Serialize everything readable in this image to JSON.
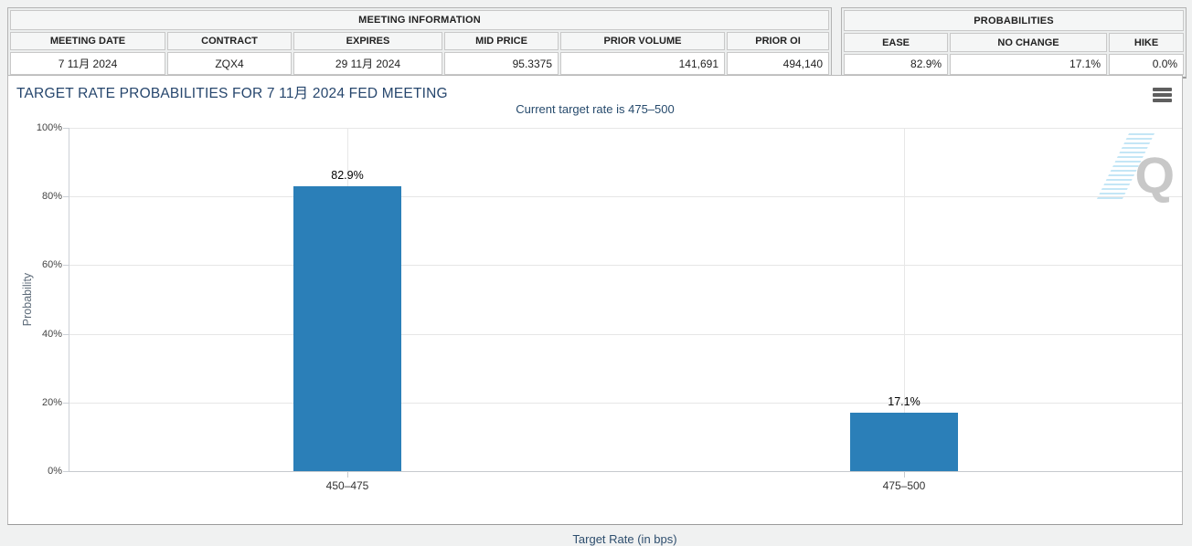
{
  "meeting_table": {
    "title": "MEETING INFORMATION",
    "headers": [
      "MEETING DATE",
      "CONTRACT",
      "EXPIRES",
      "MID PRICE",
      "PRIOR VOLUME",
      "PRIOR OI"
    ],
    "row": [
      "7 11月 2024",
      "ZQX4",
      "29 11月 2024",
      "95.3375",
      "141,691",
      "494,140"
    ]
  },
  "probabilities_table": {
    "title": "PROBABILITIES",
    "headers": [
      "EASE",
      "NO CHANGE",
      "HIKE"
    ],
    "row": [
      "82.9%",
      "17.1%",
      "0.0%"
    ]
  },
  "chart": {
    "title": "TARGET RATE PROBABILITIES FOR 7 11月 2024 FED MEETING",
    "subtitle": "Current target rate is 475–500",
    "menu_icon": "hamburger-icon",
    "watermark_letter": "Q"
  },
  "chart_data": {
    "type": "bar",
    "title": "TARGET RATE PROBABILITIES FOR 7 11月 2024 FED MEETING",
    "subtitle": "Current target rate is 475–500",
    "categories": [
      "450–475",
      "475–500"
    ],
    "values": [
      82.9,
      17.1
    ],
    "value_labels": [
      "82.9%",
      "17.1%"
    ],
    "xlabel": "Target Rate (in bps)",
    "ylabel": "Probability",
    "ylim": [
      0,
      100
    ],
    "ytick_step": 20,
    "ytick_labels": [
      "0%",
      "20%",
      "40%",
      "60%",
      "80%",
      "100%"
    ],
    "grid": true,
    "bar_color": "#2b7fb8",
    "legend": "none"
  }
}
